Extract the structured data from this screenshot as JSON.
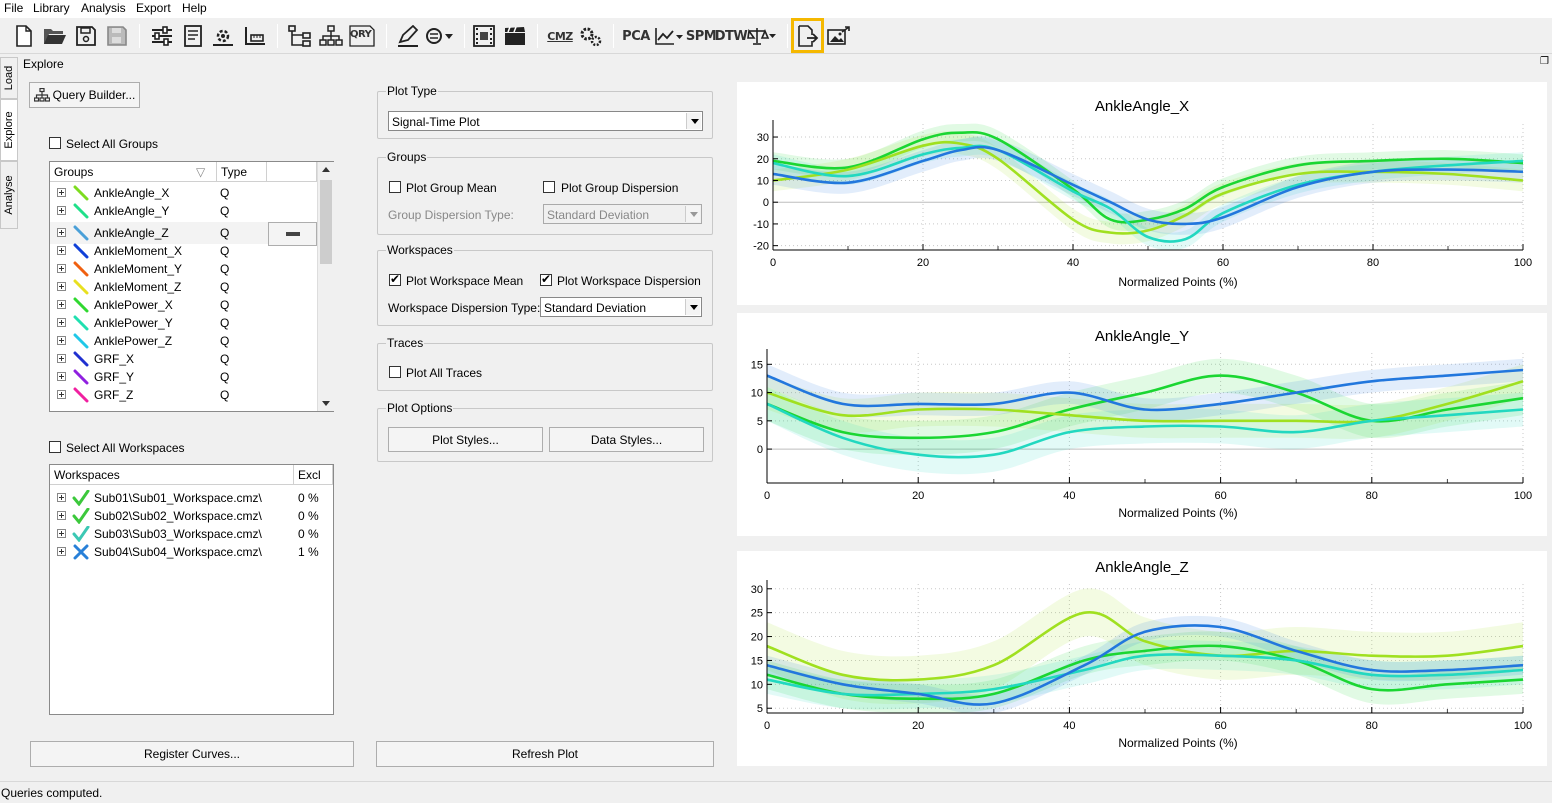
{
  "menu": [
    "File",
    "Library",
    "Analysis",
    "Export",
    "Help"
  ],
  "toolbar": {
    "text_buttons": {
      "qry": "QRY",
      "cmz": "CMZ",
      "pca": "PCA",
      "spm": "SPM",
      "dtw": "DTW"
    }
  },
  "side_tabs": [
    "Load",
    "Explore",
    "Analyse"
  ],
  "panel_title": "Explore",
  "query_builder_label": "Query Builder...",
  "select_all_groups": "Select All Groups",
  "groups_table": {
    "headers": [
      "Groups",
      "Type"
    ],
    "rows": [
      {
        "name": "AnkleAngle_X",
        "type": "Q",
        "color": "#7ddc1f"
      },
      {
        "name": "AnkleAngle_Y",
        "type": "Q",
        "color": "#20e08a"
      },
      {
        "name": "AnkleAngle_Z",
        "type": "Q",
        "color": "#4aa0d8"
      },
      {
        "name": "AnkleMoment_X",
        "type": "Q",
        "color": "#1040d8"
      },
      {
        "name": "AnkleMoment_Y",
        "type": "Q",
        "color": "#f06010"
      },
      {
        "name": "AnkleMoment_Z",
        "type": "Q",
        "color": "#e8e020"
      },
      {
        "name": "AnklePower_X",
        "type": "Q",
        "color": "#30d830"
      },
      {
        "name": "AnklePower_Y",
        "type": "Q",
        "color": "#20e0b0"
      },
      {
        "name": "AnklePower_Z",
        "type": "Q",
        "color": "#20c8e8"
      },
      {
        "name": "GRF_X",
        "type": "Q",
        "color": "#2030d0"
      },
      {
        "name": "GRF_Y",
        "type": "Q",
        "color": "#9020e0"
      },
      {
        "name": "GRF_Z",
        "type": "Q",
        "color": "#f020a0"
      }
    ]
  },
  "select_all_workspaces": "Select All Workspaces",
  "workspaces_table": {
    "headers": [
      "Workspaces",
      "Excl"
    ],
    "rows": [
      {
        "name": "Sub01\\Sub01_Workspace.cmz\\",
        "excl": "0 %",
        "icon": "check-icon",
        "color": "#3cc83c"
      },
      {
        "name": "Sub02\\Sub02_Workspace.cmz\\",
        "excl": "0 %",
        "icon": "check-icon",
        "color": "#3cc83c"
      },
      {
        "name": "Sub03\\Sub03_Workspace.cmz\\",
        "excl": "0 %",
        "icon": "check-icon",
        "color": "#3cc8b4"
      },
      {
        "name": "Sub04\\Sub04_Workspace.cmz\\",
        "excl": "1 %",
        "icon": "x-icon",
        "color": "#2880d8"
      }
    ]
  },
  "register_curves_label": "Register Curves...",
  "plot_type": {
    "title": "Plot Type",
    "value": "Signal-Time Plot"
  },
  "groups_section": {
    "title": "Groups",
    "plot_group_mean": "Plot Group Mean",
    "plot_group_dispersion": "Plot Group Dispersion",
    "dispersion_type_label": "Group Dispersion Type:",
    "dispersion_type_value": "Standard Deviation"
  },
  "workspaces_section": {
    "title": "Workspaces",
    "plot_workspace_mean": "Plot Workspace Mean",
    "plot_workspace_dispersion": "Plot Workspace Dispersion",
    "dispersion_type_label": "Workspace Dispersion Type:",
    "dispersion_type_value": "Standard Deviation"
  },
  "traces_section": {
    "title": "Traces",
    "plot_all_traces": "Plot All Traces"
  },
  "plot_options": {
    "title": "Plot Options",
    "plot_styles": "Plot Styles...",
    "data_styles": "Data Styles..."
  },
  "refresh_plot_label": "Refresh Plot",
  "status": "Queries computed.",
  "chart_data": [
    {
      "type": "line",
      "title": "AnkleAngle_X",
      "xlabel": "Normalized Points (%)",
      "xlim": [
        0,
        100
      ],
      "ylim": [
        -22,
        36
      ],
      "xticks": [
        0,
        20,
        40,
        60,
        80,
        100
      ],
      "yticks": [
        -20,
        -10,
        0,
        10,
        20,
        30
      ],
      "grid": true,
      "x": [
        0,
        10,
        20,
        25,
        30,
        40,
        45,
        50,
        55,
        60,
        70,
        80,
        90,
        100
      ],
      "series": [
        {
          "color": "#1bd632",
          "values": [
            19,
            16,
            29,
            32,
            29,
            6,
            -8,
            -8,
            -3,
            7,
            17,
            19,
            20,
            18
          ],
          "sd": 4
        },
        {
          "color": "#a0e020",
          "values": [
            10,
            15,
            26,
            27,
            20,
            -8,
            -14,
            -13,
            -6,
            4,
            13,
            14,
            13,
            10
          ],
          "sd": 5
        },
        {
          "color": "#22d8c0",
          "values": [
            18,
            12,
            22,
            25,
            24,
            5,
            -3,
            -16,
            -17,
            -5,
            8,
            14,
            17,
            19
          ],
          "sd": 4
        },
        {
          "color": "#2277dd",
          "values": [
            13,
            9,
            19,
            24,
            24,
            8,
            0,
            -8,
            -10,
            -7,
            7,
            14,
            15,
            14
          ],
          "sd": 5
        }
      ]
    },
    {
      "type": "line",
      "title": "AnkleAngle_Y",
      "xlabel": "Normalized Points (%)",
      "xlim": [
        0,
        100
      ],
      "ylim": [
        -6,
        17
      ],
      "xticks": [
        0,
        20,
        40,
        60,
        80,
        100
      ],
      "yticks": [
        0,
        5,
        10,
        15
      ],
      "grid": true,
      "x": [
        0,
        10,
        20,
        30,
        40,
        50,
        60,
        70,
        80,
        90,
        100
      ],
      "series": [
        {
          "color": "#1bd632",
          "values": [
            8,
            3,
            2,
            3,
            7,
            10,
            13,
            10,
            5,
            7,
            9
          ],
          "sd": 3
        },
        {
          "color": "#a0e020",
          "values": [
            10,
            6,
            7,
            7,
            6,
            5,
            5,
            5,
            5,
            8,
            12
          ],
          "sd": 3
        },
        {
          "color": "#22d8c0",
          "values": [
            8,
            2,
            -1,
            -1,
            3,
            4,
            4,
            3,
            5,
            6,
            7
          ],
          "sd": 3
        },
        {
          "color": "#2277dd",
          "values": [
            13,
            8,
            8,
            8,
            10,
            7,
            8,
            10,
            12,
            13,
            14
          ],
          "sd": 2
        }
      ]
    },
    {
      "type": "line",
      "title": "AnkleAngle_Z",
      "xlabel": "Normalized Points (%)",
      "xlim": [
        0,
        100
      ],
      "ylim": [
        4,
        31
      ],
      "xticks": [
        0,
        20,
        40,
        60,
        80,
        100
      ],
      "yticks": [
        5,
        10,
        15,
        20,
        25,
        30
      ],
      "grid": true,
      "x": [
        0,
        10,
        20,
        30,
        42,
        50,
        60,
        70,
        80,
        90,
        100
      ],
      "series": [
        {
          "color": "#a0e020",
          "values": [
            18,
            12,
            11,
            14,
            25,
            19,
            16,
            17,
            16,
            16,
            18
          ],
          "sd": 5
        },
        {
          "color": "#1bd632",
          "values": [
            12,
            8,
            7,
            8,
            15,
            17,
            18,
            15,
            9,
            10,
            11
          ],
          "sd": 3
        },
        {
          "color": "#22d8c0",
          "values": [
            11,
            8,
            8,
            9,
            13,
            16,
            16,
            15,
            12,
            12,
            13
          ],
          "sd": 3
        },
        {
          "color": "#2277dd",
          "values": [
            14,
            10,
            8,
            6,
            14,
            21,
            22,
            17,
            13,
            13,
            14
          ],
          "sd": 2
        }
      ]
    }
  ]
}
